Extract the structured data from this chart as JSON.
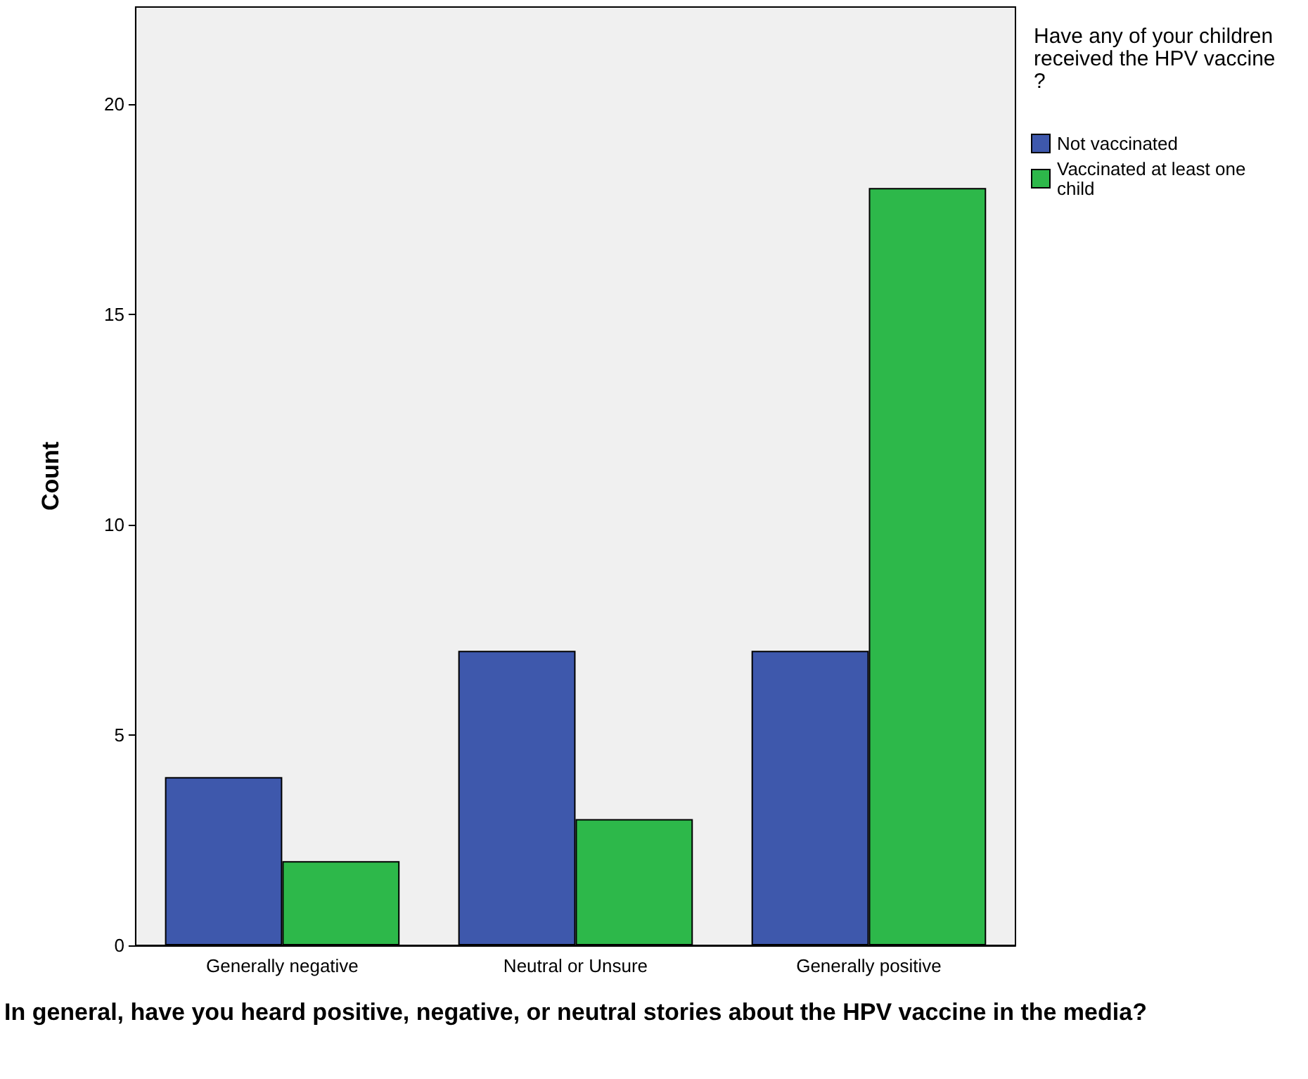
{
  "chart_data": {
    "type": "bar",
    "xlabel": "In general, have you heard positive, negative, or neutral stories about the HPV vaccine in the media?",
    "ylabel": "Count",
    "legend_title": "Have any of your children received the HPV vaccine?",
    "categories": [
      "Generally negative",
      "Neutral or Unsure",
      "Generally positive"
    ],
    "series": [
      {
        "name": "Not vaccinated",
        "color": "#3e58ac",
        "values": [
          4,
          7,
          7
        ]
      },
      {
        "name": "Vaccinated at least one child",
        "color": "#2db84a",
        "values": [
          2,
          3,
          18
        ]
      }
    ],
    "ylim": [
      0,
      22.3
    ],
    "yticks": [
      0,
      5,
      10,
      15,
      20
    ],
    "grid": false,
    "legend": "right"
  }
}
